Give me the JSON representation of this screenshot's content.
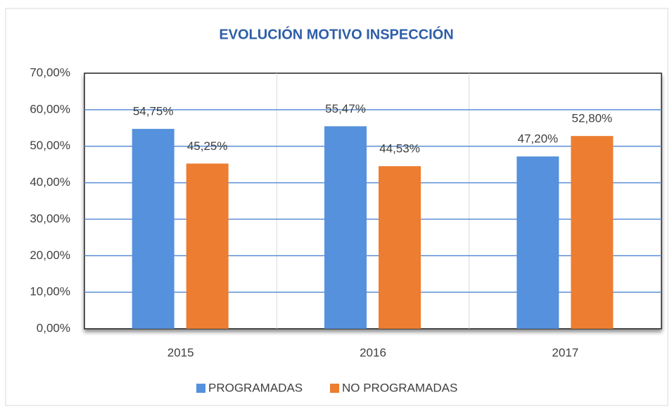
{
  "chart_data": {
    "type": "bar",
    "title": "EVOLUCIÓN MOTIVO INSPECCIÓN",
    "categories": [
      "2015",
      "2016",
      "2017"
    ],
    "series": [
      {
        "name": "PROGRAMADAS",
        "color": "#5591dc",
        "values": [
          54.75,
          55.47,
          47.2
        ],
        "value_labels": [
          "54,75%",
          "55,47%",
          "47,20%"
        ]
      },
      {
        "name": "NO PROGRAMADAS",
        "color": "#ed7d31",
        "values": [
          45.25,
          44.53,
          52.8
        ],
        "value_labels": [
          "45,25%",
          "44,53%",
          "52,80%"
        ]
      }
    ],
    "ylim": [
      0,
      70
    ],
    "yticks": [
      {
        "value": 0,
        "label": "0,00%"
      },
      {
        "value": 10,
        "label": "10,00%"
      },
      {
        "value": 20,
        "label": "20,00%"
      },
      {
        "value": 30,
        "label": "30,00%"
      },
      {
        "value": 40,
        "label": "40,00%"
      },
      {
        "value": 50,
        "label": "50,00%"
      },
      {
        "value": 60,
        "label": "60,00%"
      },
      {
        "value": 70,
        "label": "70,00%"
      }
    ],
    "grid": true,
    "legend": "bottom"
  }
}
